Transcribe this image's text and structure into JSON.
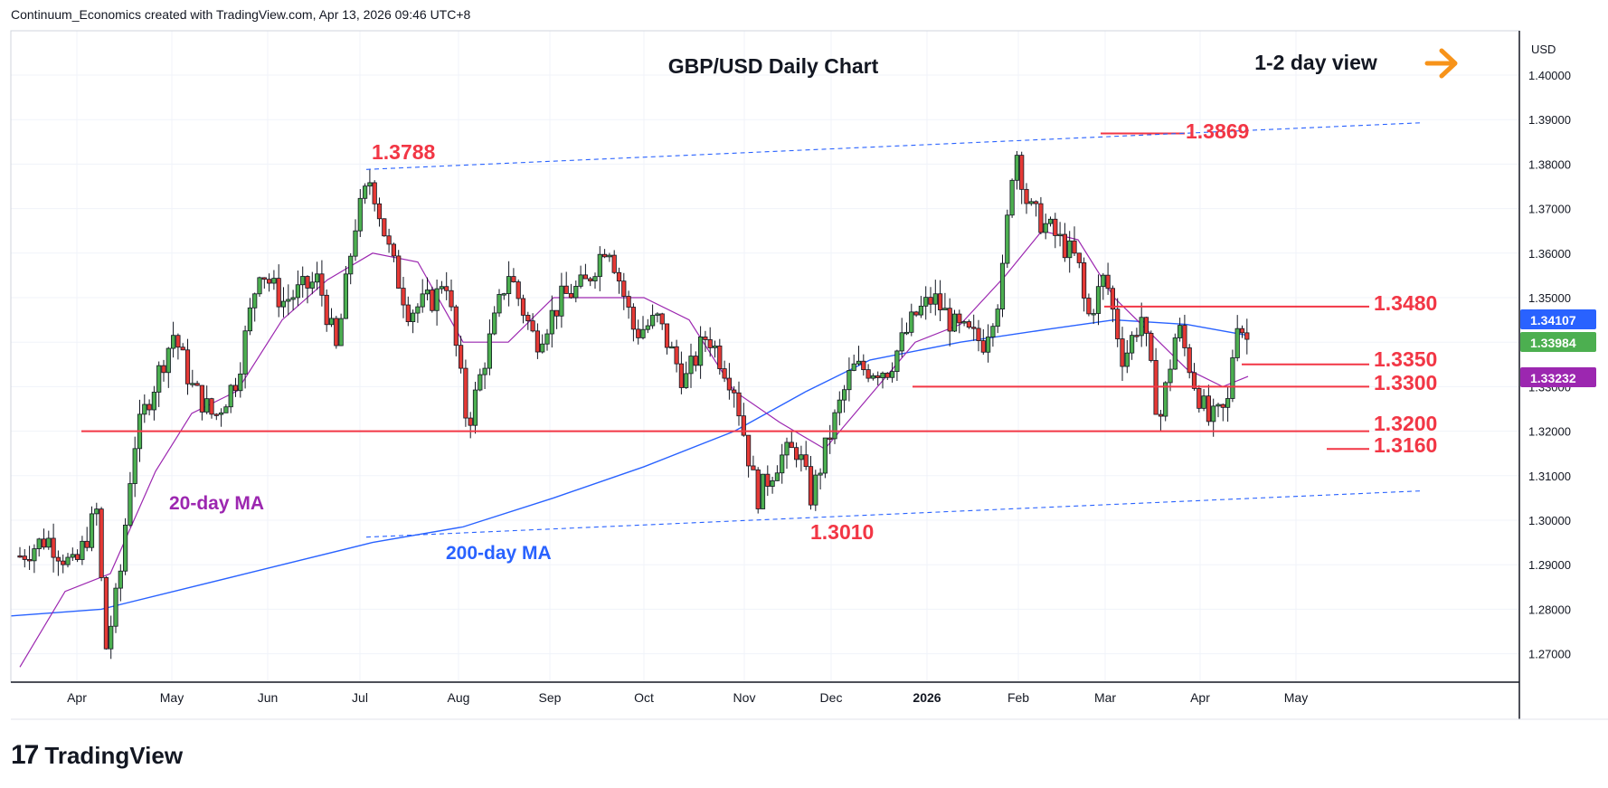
{
  "header": {
    "credit": "Continuum_Economics created with TradingView.com, Apr 13, 2026 09:46 UTC+8"
  },
  "branding": {
    "logo_mark": "17",
    "logo_text": "TradingView"
  },
  "colors": {
    "red": "#f23645",
    "blue": "#2962ff",
    "purple": "#9c27b0",
    "orange": "#f7931a",
    "green": "#4caf50",
    "candle_up": "#4caf50",
    "candle_down": "#e53935"
  },
  "chart_data": {
    "type": "candlestick",
    "title": "GBP/USD Daily Chart",
    "view_label": "1-2 day view",
    "view_icon": "arrow-right-icon",
    "currency_label": "USD",
    "y_axis": {
      "ylim": [
        1.265,
        1.4035
      ],
      "ticks": [
        "1.40000",
        "1.39000",
        "1.38000",
        "1.37000",
        "1.36000",
        "1.35000",
        "1.34000",
        "1.33000",
        "1.32000",
        "1.31000",
        "1.30000",
        "1.29000",
        "1.28000",
        "1.27000"
      ]
    },
    "x_axis": {
      "ticks": [
        "Apr",
        "May",
        "Jun",
        "Jul",
        "Aug",
        "Sep",
        "Oct",
        "Nov",
        "Dec",
        "2026",
        "Feb",
        "Mar",
        "Apr",
        "May"
      ]
    },
    "price_tags": [
      {
        "value": "1.34107",
        "color": "#2962ff"
      },
      {
        "value": "1.33984",
        "color": "#4caf50"
      },
      {
        "value": "1.33232",
        "color": "#9c27b0"
      }
    ],
    "levels": [
      {
        "label": "1.3869",
        "value": 1.3869
      },
      {
        "label": "1.3788",
        "value": 1.3788
      },
      {
        "label": "1.3480",
        "value": 1.348
      },
      {
        "label": "1.3350",
        "value": 1.335
      },
      {
        "label": "1.3300",
        "value": 1.33
      },
      {
        "label": "1.3200",
        "value": 1.32
      },
      {
        "label": "1.3160",
        "value": 1.316
      },
      {
        "label": "1.3010",
        "value": 1.301
      }
    ],
    "indicator_labels": {
      "ma20": "20-day MA",
      "ma200": "200-day MA"
    },
    "ma200": [
      [
        0,
        1.2785
      ],
      [
        100,
        1.28
      ],
      [
        200,
        1.285
      ],
      [
        300,
        1.29
      ],
      [
        400,
        1.295
      ],
      [
        500,
        1.2985
      ],
      [
        600,
        1.305
      ],
      [
        700,
        1.312
      ],
      [
        800,
        1.32
      ],
      [
        880,
        1.329
      ],
      [
        950,
        1.336
      ],
      [
        1050,
        1.34
      ],
      [
        1150,
        1.343
      ],
      [
        1220,
        1.345
      ],
      [
        1300,
        1.344
      ],
      [
        1368,
        1.3415
      ]
    ],
    "ma20": [
      [
        10,
        1.267
      ],
      [
        60,
        1.284
      ],
      [
        110,
        1.288
      ],
      [
        160,
        1.311
      ],
      [
        200,
        1.324
      ],
      [
        250,
        1.329
      ],
      [
        300,
        1.345
      ],
      [
        350,
        1.354
      ],
      [
        400,
        1.36
      ],
      [
        450,
        1.358
      ],
      [
        500,
        1.34
      ],
      [
        550,
        1.34
      ],
      [
        600,
        1.35
      ],
      [
        650,
        1.35
      ],
      [
        700,
        1.35
      ],
      [
        750,
        1.345
      ],
      [
        800,
        1.329
      ],
      [
        850,
        1.322
      ],
      [
        900,
        1.316
      ],
      [
        950,
        1.328
      ],
      [
        1000,
        1.34
      ],
      [
        1050,
        1.344
      ],
      [
        1100,
        1.355
      ],
      [
        1140,
        1.365
      ],
      [
        1180,
        1.363
      ],
      [
        1220,
        1.35
      ],
      [
        1260,
        1.342
      ],
      [
        1300,
        1.334
      ],
      [
        1340,
        1.33
      ],
      [
        1368,
        1.3323
      ]
    ],
    "price_path": [
      [
        10,
        1.292
      ],
      [
        40,
        1.296
      ],
      [
        70,
        1.289
      ],
      [
        95,
        1.302
      ],
      [
        105,
        1.271
      ],
      [
        120,
        1.286
      ],
      [
        135,
        1.316
      ],
      [
        150,
        1.326
      ],
      [
        180,
        1.342
      ],
      [
        200,
        1.33
      ],
      [
        225,
        1.323
      ],
      [
        250,
        1.332
      ],
      [
        275,
        1.357
      ],
      [
        300,
        1.349
      ],
      [
        340,
        1.354
      ],
      [
        360,
        1.338
      ],
      [
        380,
        1.366
      ],
      [
        398,
        1.377
      ],
      [
        420,
        1.359
      ],
      [
        440,
        1.347
      ],
      [
        470,
        1.35
      ],
      [
        480,
        1.356
      ],
      [
        505,
        1.321
      ],
      [
        525,
        1.337
      ],
      [
        550,
        1.356
      ],
      [
        580,
        1.34
      ],
      [
        610,
        1.35
      ],
      [
        635,
        1.353
      ],
      [
        660,
        1.363
      ],
      [
        690,
        1.342
      ],
      [
        715,
        1.345
      ],
      [
        745,
        1.331
      ],
      [
        770,
        1.342
      ],
      [
        800,
        1.33
      ],
      [
        825,
        1.305
      ],
      [
        850,
        1.314
      ],
      [
        870,
        1.316
      ],
      [
        885,
        1.305
      ],
      [
        905,
        1.319
      ],
      [
        930,
        1.334
      ],
      [
        970,
        1.334
      ],
      [
        1000,
        1.346
      ],
      [
        1020,
        1.35
      ],
      [
        1045,
        1.343
      ],
      [
        1075,
        1.34
      ],
      [
        1095,
        1.352
      ],
      [
        1110,
        1.385
      ],
      [
        1125,
        1.37
      ],
      [
        1150,
        1.365
      ],
      [
        1180,
        1.358
      ],
      [
        1190,
        1.345
      ],
      [
        1210,
        1.355
      ],
      [
        1230,
        1.336
      ],
      [
        1250,
        1.346
      ],
      [
        1270,
        1.322
      ],
      [
        1290,
        1.344
      ],
      [
        1310,
        1.33
      ],
      [
        1325,
        1.322
      ],
      [
        1345,
        1.325
      ],
      [
        1355,
        1.346
      ],
      [
        1368,
        1.34
      ]
    ]
  }
}
